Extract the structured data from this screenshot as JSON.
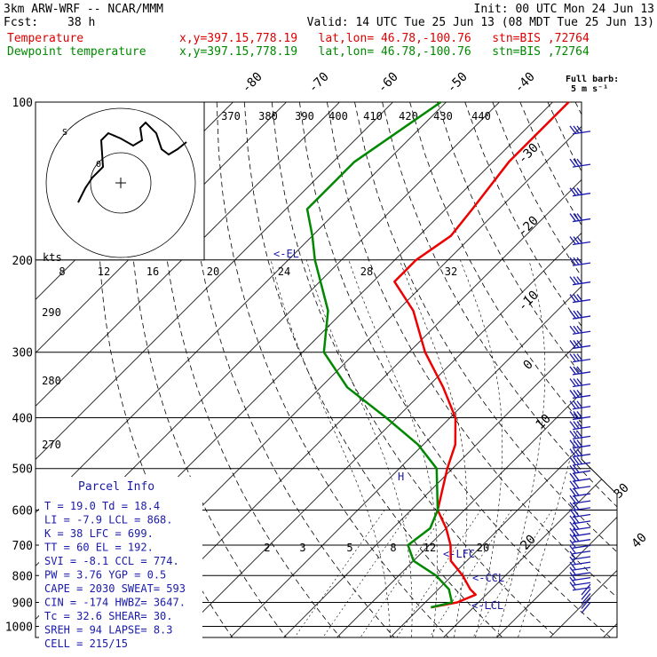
{
  "header": {
    "model": "3km ARW-WRF -- NCAR/MMM",
    "init": "Init: 00 UTC Mon 24 Jun 13",
    "fcst_label": "Fcst:",
    "fcst_value": "38 h",
    "valid": "Valid: 14 UTC Tue 25 Jun 13 (08 MDT Tue 25 Jun 13)",
    "temp_label": "Temperature",
    "temp_info": "x,y=397.15,778.19   lat,lon= 46.78,-100.76   stn=BIS ,72764",
    "dew_label": "Dewpoint temperature",
    "dew_info": "x,y=397.15,778.19   lat,lon= 46.78,-100.76   stn=BIS ,72764"
  },
  "barb_legend": {
    "line1": "Full barb:",
    "line2": "5 m s⁻¹"
  },
  "parcel": {
    "title": "Parcel Info",
    "rows": [
      "T  =    19.0  Td =  18.4",
      "LI =    -7.9  LCL =  868.",
      "K  =      38  LFC =  699.",
      "TT =      60  EL  =  192.",
      "SVI =   -8.1  CCL =  774.",
      "PW =    3.76  YGP =   0.5",
      "CAPE =  2030  SWEAT=  593",
      "CIN =   -174  HWBZ= 3647.",
      "Tc =    32.6  SHEAR=  30.",
      "SREH =    94  LAPSE=  8.3",
      "CELL = 215/15"
    ]
  },
  "level_labels": {
    "el": "<-EL",
    "lfc": "<-LFC",
    "ccl": "<-CCL",
    "lcl": "<-LCL",
    "h": "H"
  },
  "hodograph": {
    "unit": "kts",
    "rings": [
      "8",
      "12",
      "16",
      "20",
      "24",
      "28",
      "32"
    ],
    "dir_label": "S",
    "pt_label": "0"
  },
  "chart_data": {
    "type": "line",
    "title": "Skew-T log-P",
    "yaxis": {
      "label": "Pressure (hPa)",
      "ticks": [
        100,
        200,
        300,
        400,
        500,
        600,
        700,
        800,
        900,
        1000
      ]
    },
    "isotherm_labels": [
      "-80",
      "-70",
      "-60",
      "-50",
      "-40",
      "-30",
      "-20",
      "-10",
      "0",
      "10",
      "20",
      "30",
      "40"
    ],
    "theta_labels": [
      "370",
      "380",
      "390",
      "400",
      "410",
      "420",
      "430",
      "440"
    ],
    "theta_lower_labels": [
      "290",
      "280",
      "270"
    ],
    "mixing_ratio_labels": [
      "2",
      "3",
      "5",
      "8",
      "12",
      "20"
    ],
    "series": [
      {
        "name": "Temperature",
        "color": "#ee0000",
        "points": [
          [
            100,
            -57
          ],
          [
            130,
            -57
          ],
          [
            160,
            -55
          ],
          [
            180,
            -54
          ],
          [
            200,
            -56
          ],
          [
            220,
            -56
          ],
          [
            250,
            -47
          ],
          [
            300,
            -37
          ],
          [
            350,
            -27
          ],
          [
            400,
            -19
          ],
          [
            450,
            -14
          ],
          [
            500,
            -11
          ],
          [
            600,
            -5
          ],
          [
            650,
            0
          ],
          [
            700,
            4
          ],
          [
            750,
            7
          ],
          [
            800,
            12
          ],
          [
            850,
            16
          ],
          [
            870,
            18
          ],
          [
            900,
            16
          ],
          [
            920,
            12
          ]
        ]
      },
      {
        "name": "Dewpoint temperature",
        "color": "#008800",
        "points": [
          [
            100,
            -81
          ],
          [
            130,
            -86
          ],
          [
            160,
            -86
          ],
          [
            180,
            -80
          ],
          [
            200,
            -75
          ],
          [
            250,
            -63
          ],
          [
            300,
            -56
          ],
          [
            350,
            -45
          ],
          [
            400,
            -32
          ],
          [
            450,
            -21
          ],
          [
            500,
            -13
          ],
          [
            600,
            -5
          ],
          [
            650,
            -3
          ],
          [
            700,
            -4
          ],
          [
            750,
            0
          ],
          [
            800,
            7
          ],
          [
            850,
            12
          ],
          [
            900,
            15
          ],
          [
            920,
            12
          ]
        ]
      }
    ],
    "wind_barbs": "profile from 100 to 950 hPa (blue)",
    "grid": true
  }
}
